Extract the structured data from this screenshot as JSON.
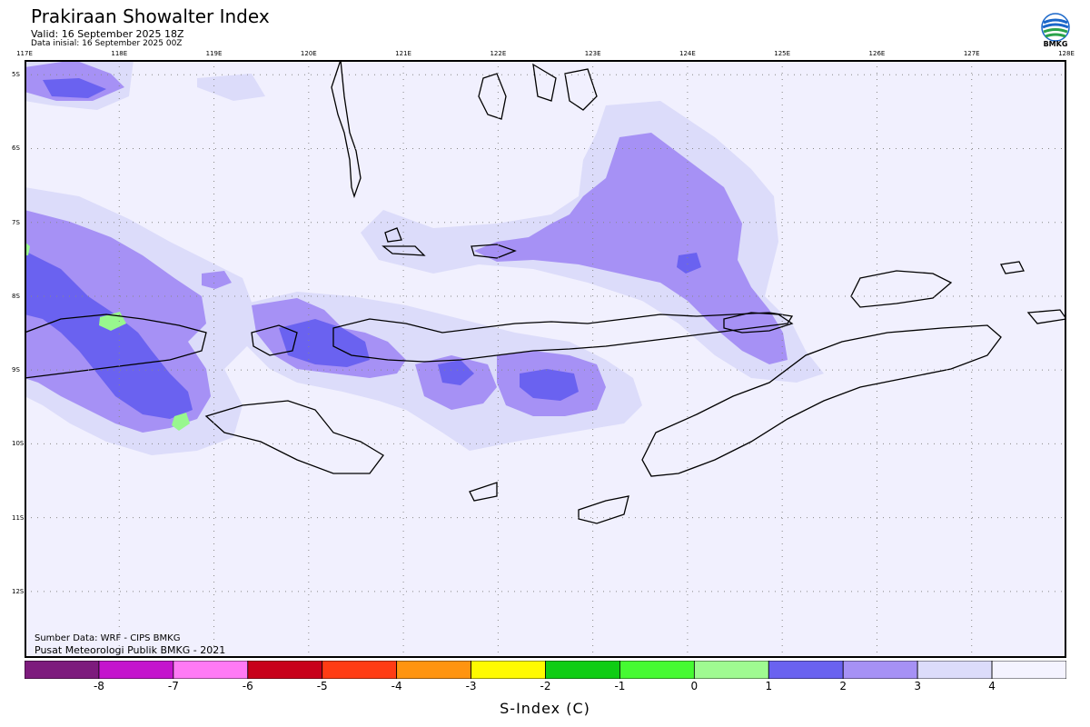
{
  "header": {
    "title": "Prakiraan Showalter Index",
    "valid": "Valid: 16 September 2025 18Z",
    "initial": "Data inisial: 16 September 2025 00Z",
    "logo_text": "BMKG"
  },
  "credits": {
    "source": "Sumber Data: WRF - CIPS BMKG",
    "publisher": "Pusat Meteorologi Publik BMKG - 2021"
  },
  "colors": {
    "ocean": "#f1f0fe",
    "level_3_4": "#dcdcfa",
    "level_2_3": "#a691f5",
    "level_1_2": "#6a62f0",
    "level_0_1": "#98f78e",
    "coast": "#000000"
  },
  "chart_data": {
    "type": "heatmap",
    "title": "Prakiraan Showalter Index",
    "subtitle": "Valid: 16 September 2025 18Z",
    "xlabel": "",
    "ylabel": "",
    "x_ticks": [
      "117E",
      "118E",
      "119E",
      "120E",
      "121E",
      "122E",
      "123E",
      "124E",
      "125E",
      "126E",
      "127E",
      "128E"
    ],
    "y_ticks": [
      "5S",
      "6S",
      "7S",
      "8S",
      "9S",
      "10S",
      "11S",
      "12S"
    ],
    "xlim": [
      117,
      128
    ],
    "ylim": [
      -12.9,
      -4.8
    ],
    "grid": true,
    "colorbar": {
      "title": "S-Index (C)",
      "labels": [
        "-8",
        "-7",
        "-6",
        "-5",
        "-4",
        "-3",
        "-2",
        "-1",
        "0",
        "1",
        "2",
        "3",
        "4"
      ],
      "colors": [
        "#7d1b7d",
        "#c414cd",
        "#ff7af5",
        "#c8001a",
        "#ff3c14",
        "#ff9410",
        "#fffa00",
        "#0fcd14",
        "#46fa32",
        "#9ffa91",
        "#6a62f0",
        "#a691f5",
        "#dcdcfa",
        "#f4f3ff"
      ]
    }
  }
}
